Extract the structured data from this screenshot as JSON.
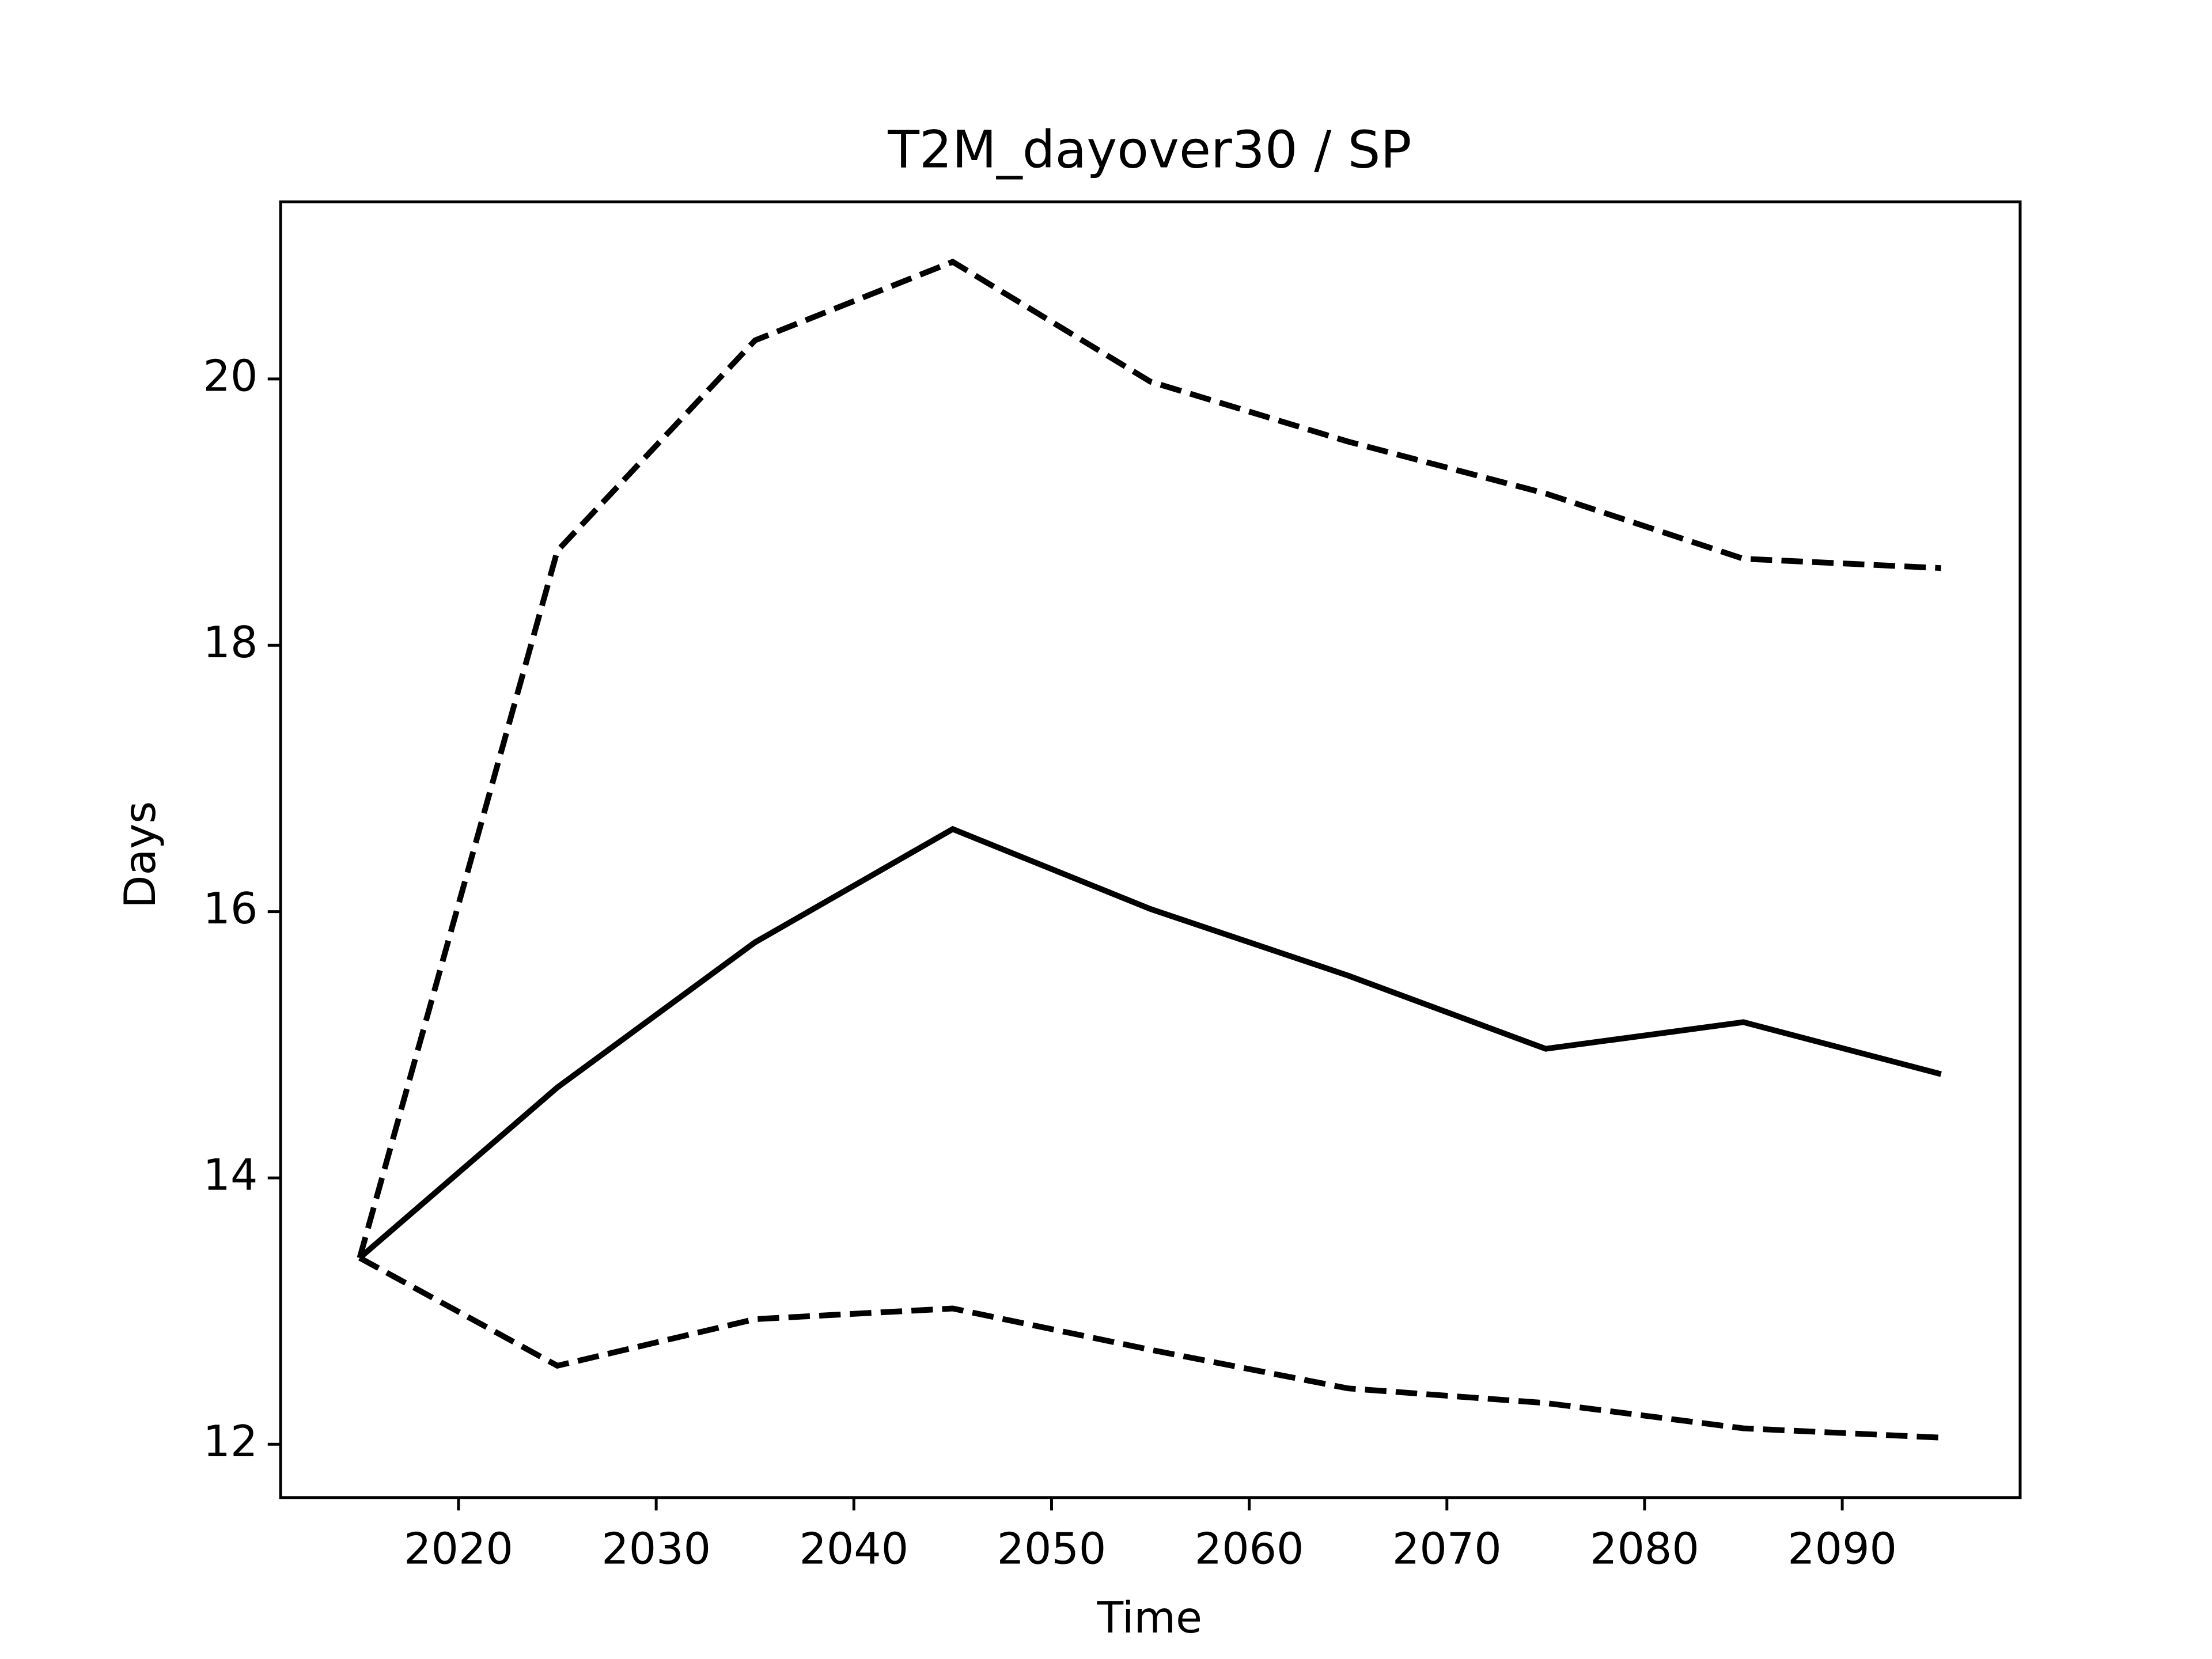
{
  "chart_data": {
    "type": "line",
    "title": "T2M_dayover30 / SP",
    "xlabel": "Time",
    "ylabel": "Days",
    "x": [
      2015,
      2025,
      2035,
      2045,
      2055,
      2065,
      2075,
      2085,
      2095
    ],
    "series": [
      {
        "color": "#000000",
        "linestyle": "solid",
        "values": [
          13.4,
          14.68,
          15.77,
          16.62,
          16.02,
          15.52,
          14.97,
          15.17,
          14.78
        ]
      },
      {
        "color": "#000000",
        "linestyle": "dashed",
        "values": [
          13.4,
          18.71,
          20.29,
          20.88,
          19.98,
          19.53,
          19.14,
          18.65,
          18.58
        ]
      },
      {
        "color": "#000000",
        "linestyle": "dashed",
        "values": [
          13.4,
          12.59,
          12.94,
          13.02,
          12.71,
          12.42,
          12.31,
          12.12,
          12.05
        ]
      }
    ],
    "xlim": [
      2011,
      2099
    ],
    "xticks": [
      2020,
      2030,
      2040,
      2050,
      2060,
      2070,
      2080,
      2090
    ],
    "ylim": [
      11.6,
      21.33
    ],
    "yticks": [
      12,
      14,
      16,
      18,
      20
    ],
    "grid": false
  }
}
